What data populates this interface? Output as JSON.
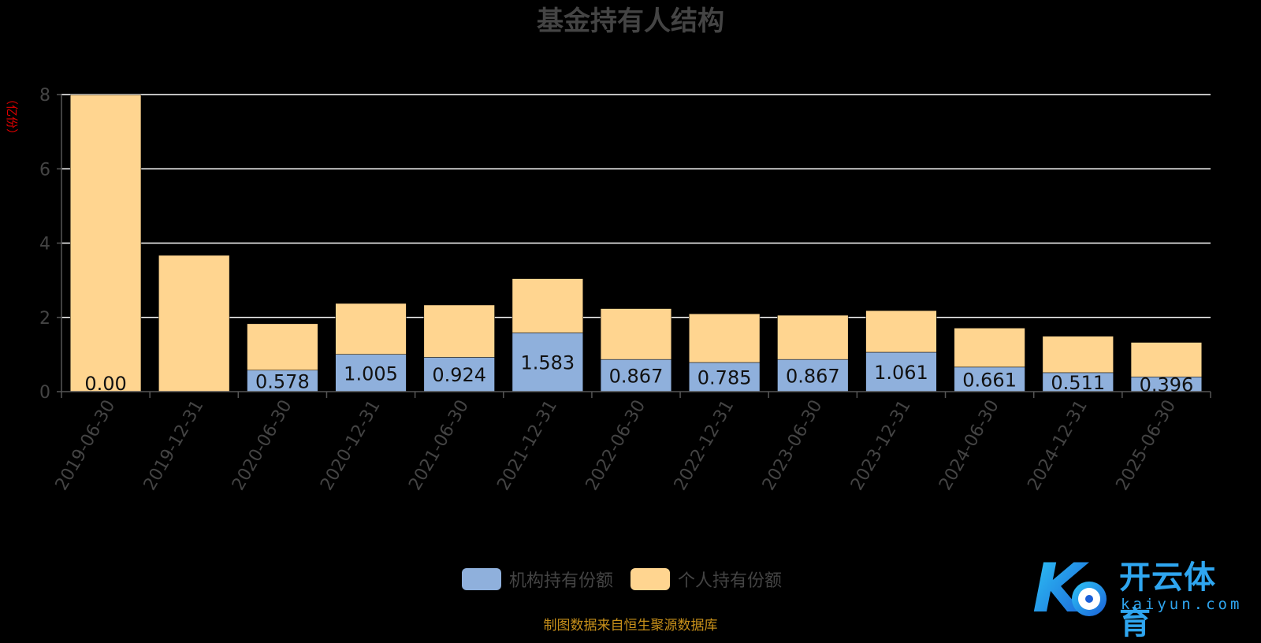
{
  "chart_data": {
    "type": "bar",
    "stacked": true,
    "title": "基金持有人结构",
    "ylabel": "（亿份）",
    "xlabel": "",
    "ylim": [
      0,
      8
    ],
    "yticks": [
      0,
      2,
      4,
      6,
      8
    ],
    "grid": true,
    "legend_position": "bottom",
    "categories": [
      "2019-06-30",
      "2019-12-31",
      "2020-06-30",
      "2020-12-31",
      "2021-06-30",
      "2021-12-31",
      "2022-06-30",
      "2022-12-31",
      "2023-06-30",
      "2023-12-31",
      "2024-06-30",
      "2024-12-31",
      "2025-06-30"
    ],
    "series": [
      {
        "name": "机构持有份额",
        "color": "#8fb0dc",
        "values": [
          0.002,
          0,
          0.578,
          1.005,
          0.924,
          1.583,
          0.867,
          0.785,
          0.867,
          1.061,
          0.661,
          0.511,
          0.396
        ],
        "labels": [
          "0.00",
          "",
          "0.578",
          "1.005",
          "0.924",
          "1.583",
          "0.867",
          "0.785",
          "0.867",
          "1.061",
          "0.661",
          "0.511",
          "0.396"
        ]
      },
      {
        "name": "个人持有份额",
        "color": "#ffd590",
        "values": [
          7.99,
          3.67,
          1.25,
          1.37,
          1.41,
          1.46,
          1.37,
          1.31,
          1.19,
          1.12,
          1.05,
          0.98,
          0.93
        ]
      }
    ]
  },
  "footnote": "制图数据来自恒生聚源数据库",
  "watermark": {
    "brand": "开云体育",
    "sub": "kaiyun.com"
  },
  "colors": {
    "grid": "#ffffff",
    "axis": "#555555",
    "title": "#444444",
    "ylabel": "#e00000"
  }
}
